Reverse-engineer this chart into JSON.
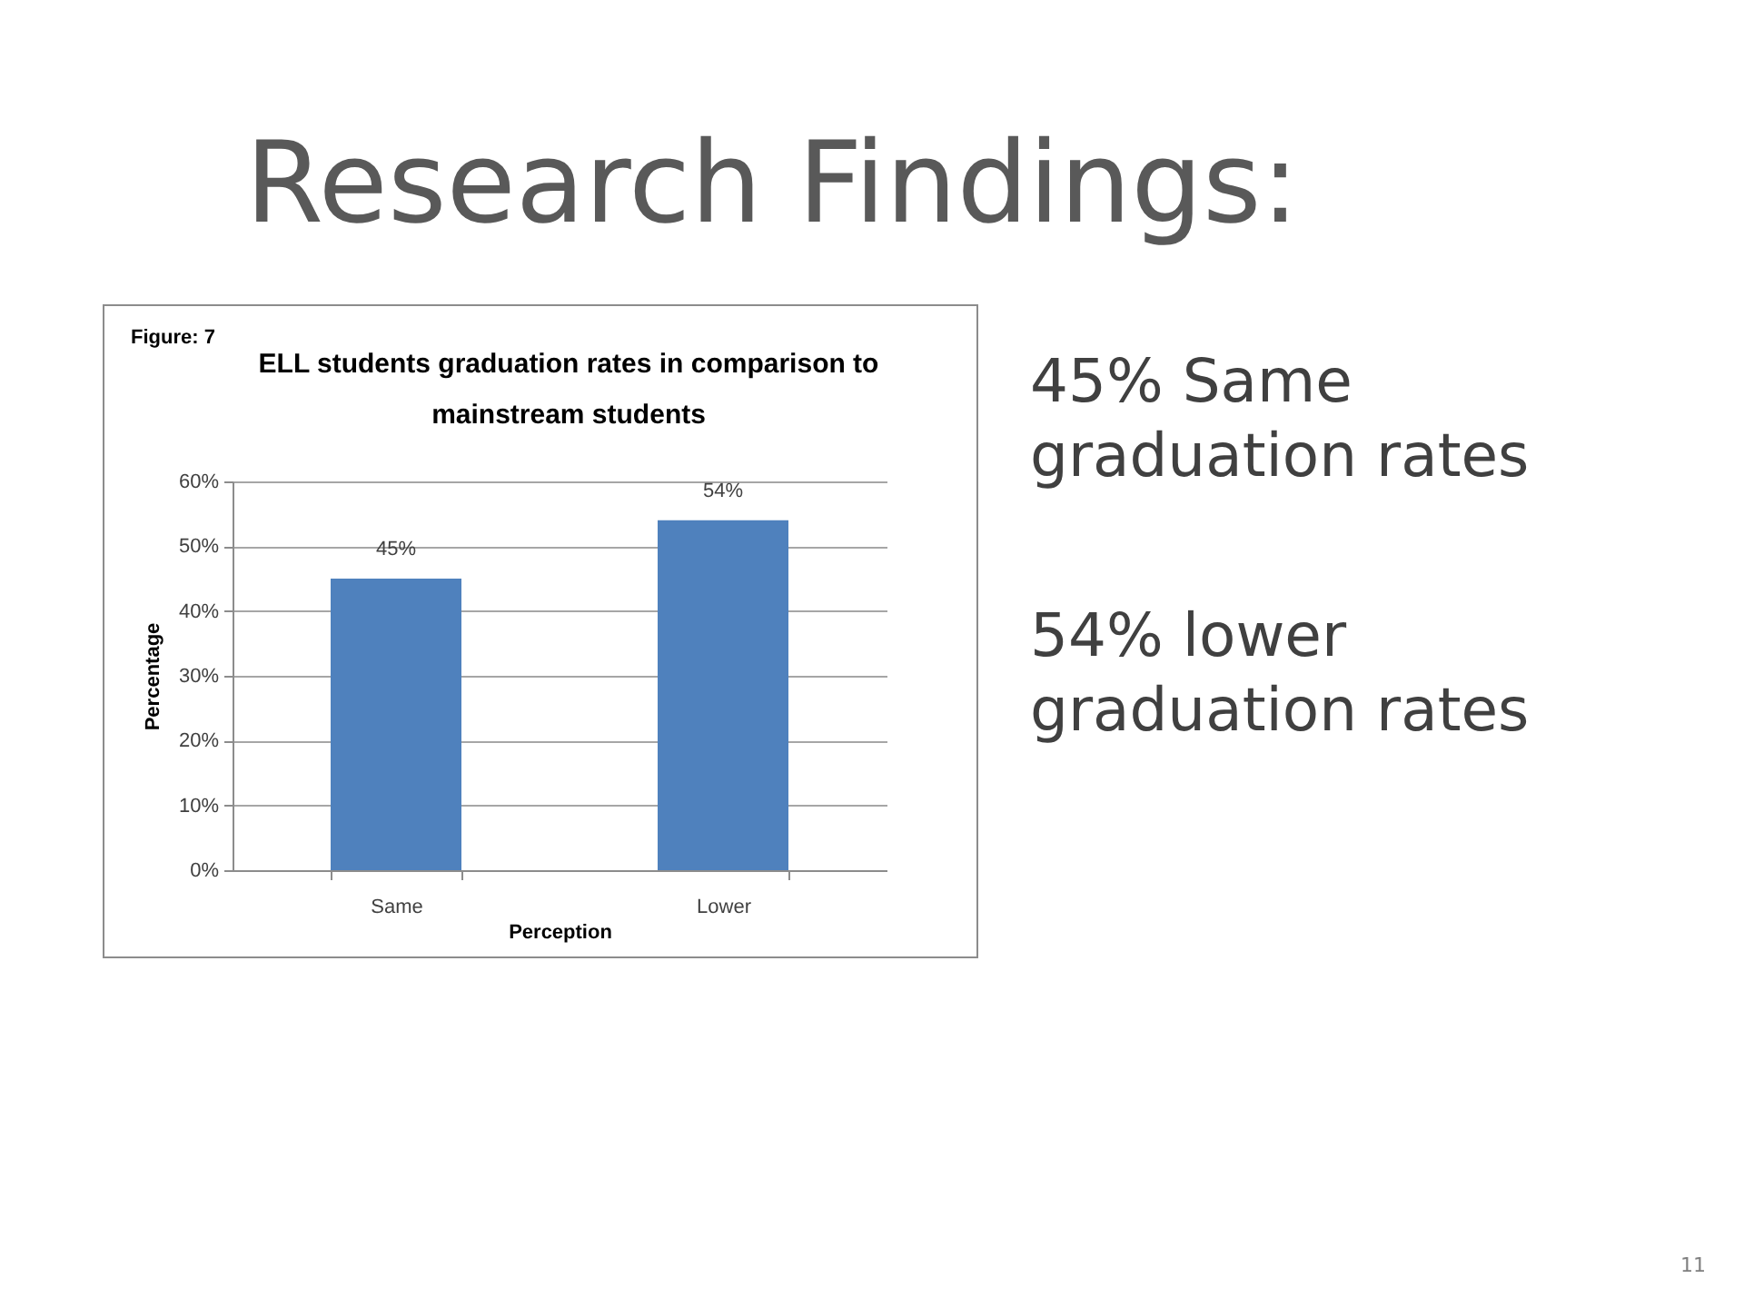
{
  "chart_data": {
    "type": "bar",
    "title": "ELL students graduation rates in comparison to mainstream students",
    "xlabel": "Perception",
    "ylabel": "Percentage",
    "categories": [
      "Same",
      "Lower"
    ],
    "values": [
      45,
      54
    ],
    "color": "#4f81bd",
    "value_labels": [
      "45%",
      "54%"
    ],
    "ylim": [
      0,
      60
    ],
    "yticks": [
      {
        "value": 0,
        "label": "0%"
      },
      {
        "value": 10,
        "label": "10%"
      },
      {
        "value": 20,
        "label": "20%"
      },
      {
        "value": 30,
        "label": "30%"
      },
      {
        "value": 40,
        "label": "40%"
      },
      {
        "value": 50,
        "label": "50%"
      },
      {
        "value": 60,
        "label": "60%"
      }
    ],
    "grid": "y",
    "annotations": [
      "Research Findings:",
      "Figure: 7",
      "45% Same graduation rates",
      "54% lower graduation rates",
      "11"
    ]
  }
}
